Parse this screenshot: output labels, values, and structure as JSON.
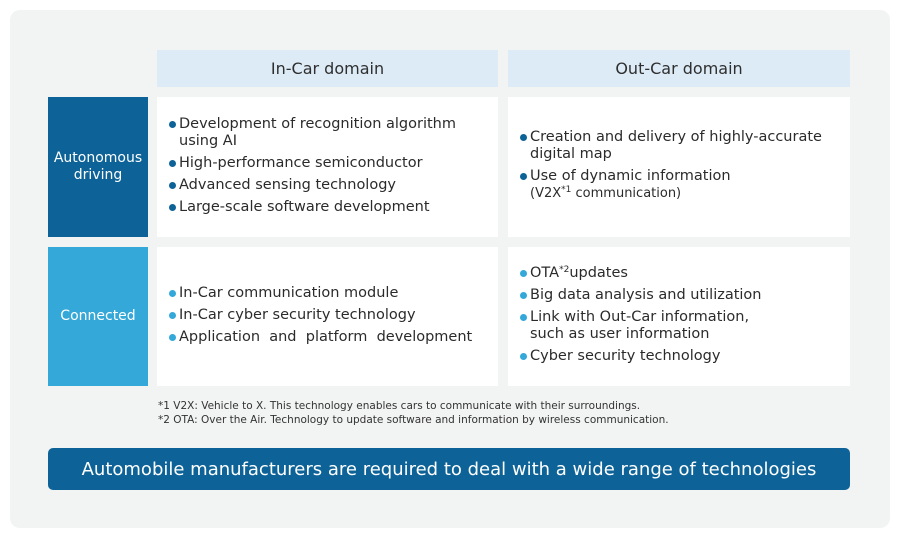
{
  "columns": {
    "incar": "In-Car domain",
    "outcar": "Out-Car domain"
  },
  "rows": {
    "autonomous": {
      "line1": "Autonomous",
      "line2": "driving"
    },
    "connected": "Connected"
  },
  "cells": {
    "autonomous_incar": [
      {
        "l1": "Development of recognition algorithm",
        "l2": "using AI"
      },
      {
        "l1": "High-performance semiconductor"
      },
      {
        "l1": "Advanced sensing technology"
      },
      {
        "l1": "Large-scale software development"
      }
    ],
    "autonomous_outcar": {
      "item1": {
        "l1": "Creation and delivery of highly-accurate",
        "l2": "digital map"
      },
      "item2": {
        "l1": "Use of dynamic information",
        "l2_a": "(V2X",
        "l2_sup": "*1",
        "l2_b": " communication)"
      }
    },
    "connected_incar": [
      "In-Car communication module",
      "In-Car cyber security technology",
      "Application  and  platform  development"
    ],
    "connected_outcar": {
      "item1": {
        "a": "OTA",
        "sup": "*2",
        "b": "updates"
      },
      "item2": "Big data analysis and utilization",
      "item3": {
        "l1": "Link with Out-Car information,",
        "l2": "such as user information"
      },
      "item4": "Cyber security technology"
    }
  },
  "footnotes": [
    "*1 V2X: Vehicle to X. This technology enables cars to communicate with their surroundings.",
    "*2 OTA: Over the Air. Technology to update software and information by wireless communication."
  ],
  "banner": "Automobile manufacturers are required to deal with a wide range of technologies",
  "colors": {
    "dark_blue": "#0d6397",
    "light_blue": "#34a8d8",
    "header_bg": "#dcebf6",
    "panel_bg": "#f2f3f3"
  }
}
